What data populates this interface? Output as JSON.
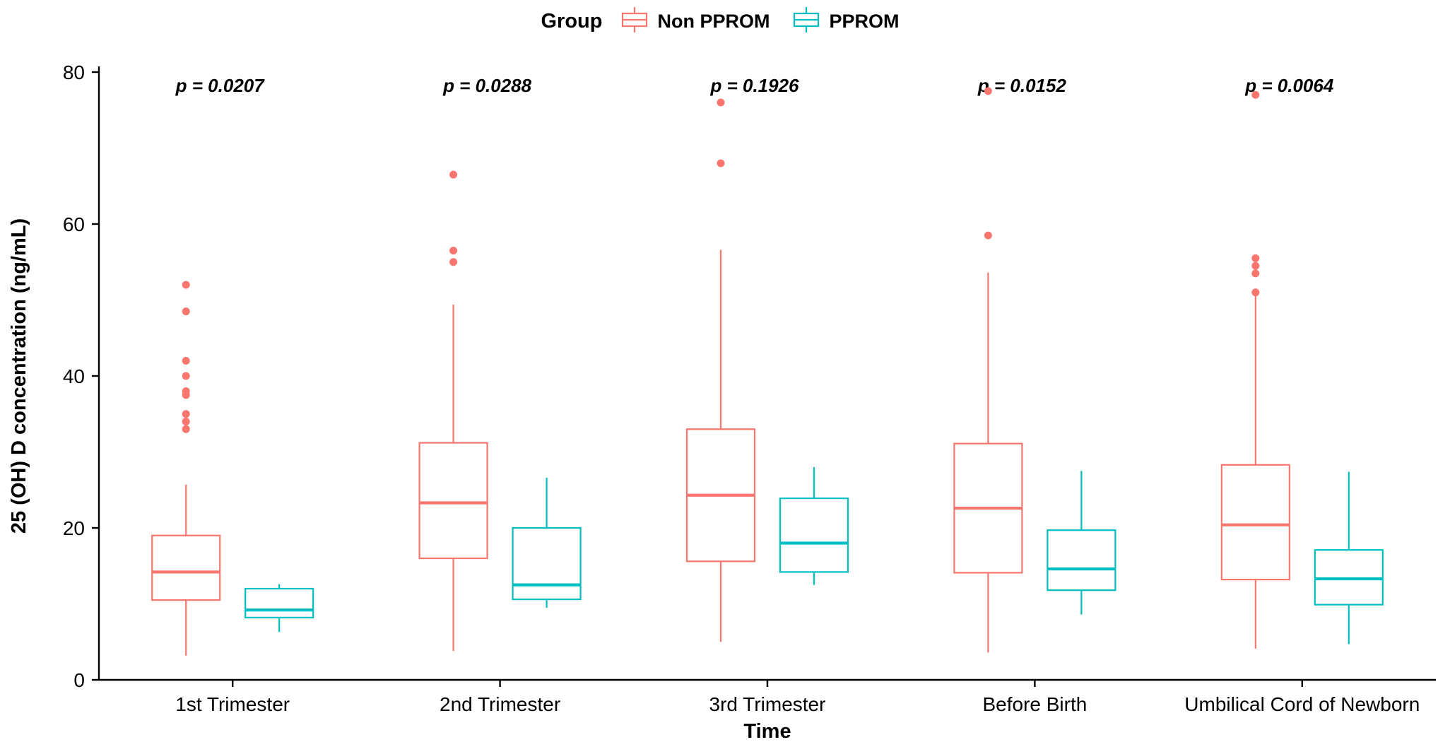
{
  "legend": {
    "title": "Group",
    "items": [
      {
        "label": "Non PPROM",
        "color": "#F8766D"
      },
      {
        "label": "PPROM",
        "color": "#00BFC4"
      }
    ]
  },
  "chart_data": {
    "type": "boxplot",
    "title": "",
    "xlabel": "Time",
    "ylabel": "25 (OH) D concentration (ng/mL)",
    "ylim": [
      0,
      80
    ],
    "yticks": [
      0,
      20,
      40,
      60,
      80
    ],
    "grid": false,
    "legend_position": "top",
    "categories": [
      "1st Trimester",
      "2nd Trimester",
      "3rd Trimester",
      "Before Birth",
      "Umbilical Cord of Newborn"
    ],
    "p_values": [
      "p = 0.0207",
      "p = 0.0288",
      "p = 0.1926",
      "p = 0.0152",
      "p = 0.0064"
    ],
    "series": [
      {
        "name": "Non PPROM",
        "color": "#F8766D",
        "boxes": [
          {
            "whisker_low": 3.2,
            "q1": 10.5,
            "median": 14.2,
            "q3": 19.0,
            "whisker_high": 25.7,
            "outliers": [
              33,
              34,
              35,
              37.5,
              38,
              40,
              42,
              48.5,
              52
            ]
          },
          {
            "whisker_low": 3.8,
            "q1": 16.0,
            "median": 23.3,
            "q3": 31.2,
            "whisker_high": 49.4,
            "outliers": [
              55,
              56.5,
              66.5
            ]
          },
          {
            "whisker_low": 5.0,
            "q1": 15.6,
            "median": 24.3,
            "q3": 33.0,
            "whisker_high": 56.6,
            "outliers": [
              68,
              76
            ]
          },
          {
            "whisker_low": 3.6,
            "q1": 14.1,
            "median": 22.6,
            "q3": 31.1,
            "whisker_high": 53.6,
            "outliers": [
              58.5,
              77.5
            ]
          },
          {
            "whisker_low": 4.1,
            "q1": 13.2,
            "median": 20.4,
            "q3": 28.3,
            "whisker_high": 50.6,
            "outliers": [
              51,
              53.5,
              54.5,
              55.5,
              77
            ]
          }
        ]
      },
      {
        "name": "PPROM",
        "color": "#00BFC4",
        "boxes": [
          {
            "whisker_low": 6.3,
            "q1": 8.2,
            "median": 9.2,
            "q3": 12.0,
            "whisker_high": 12.6,
            "outliers": []
          },
          {
            "whisker_low": 9.5,
            "q1": 10.6,
            "median": 12.5,
            "q3": 20.0,
            "whisker_high": 26.6,
            "outliers": []
          },
          {
            "whisker_low": 12.5,
            "q1": 14.2,
            "median": 18.0,
            "q3": 23.9,
            "whisker_high": 28.0,
            "outliers": []
          },
          {
            "whisker_low": 8.6,
            "q1": 11.8,
            "median": 14.6,
            "q3": 19.7,
            "whisker_high": 27.5,
            "outliers": []
          },
          {
            "whisker_low": 4.7,
            "q1": 9.9,
            "median": 13.3,
            "q3": 17.1,
            "whisker_high": 27.4,
            "outliers": []
          }
        ]
      }
    ]
  }
}
